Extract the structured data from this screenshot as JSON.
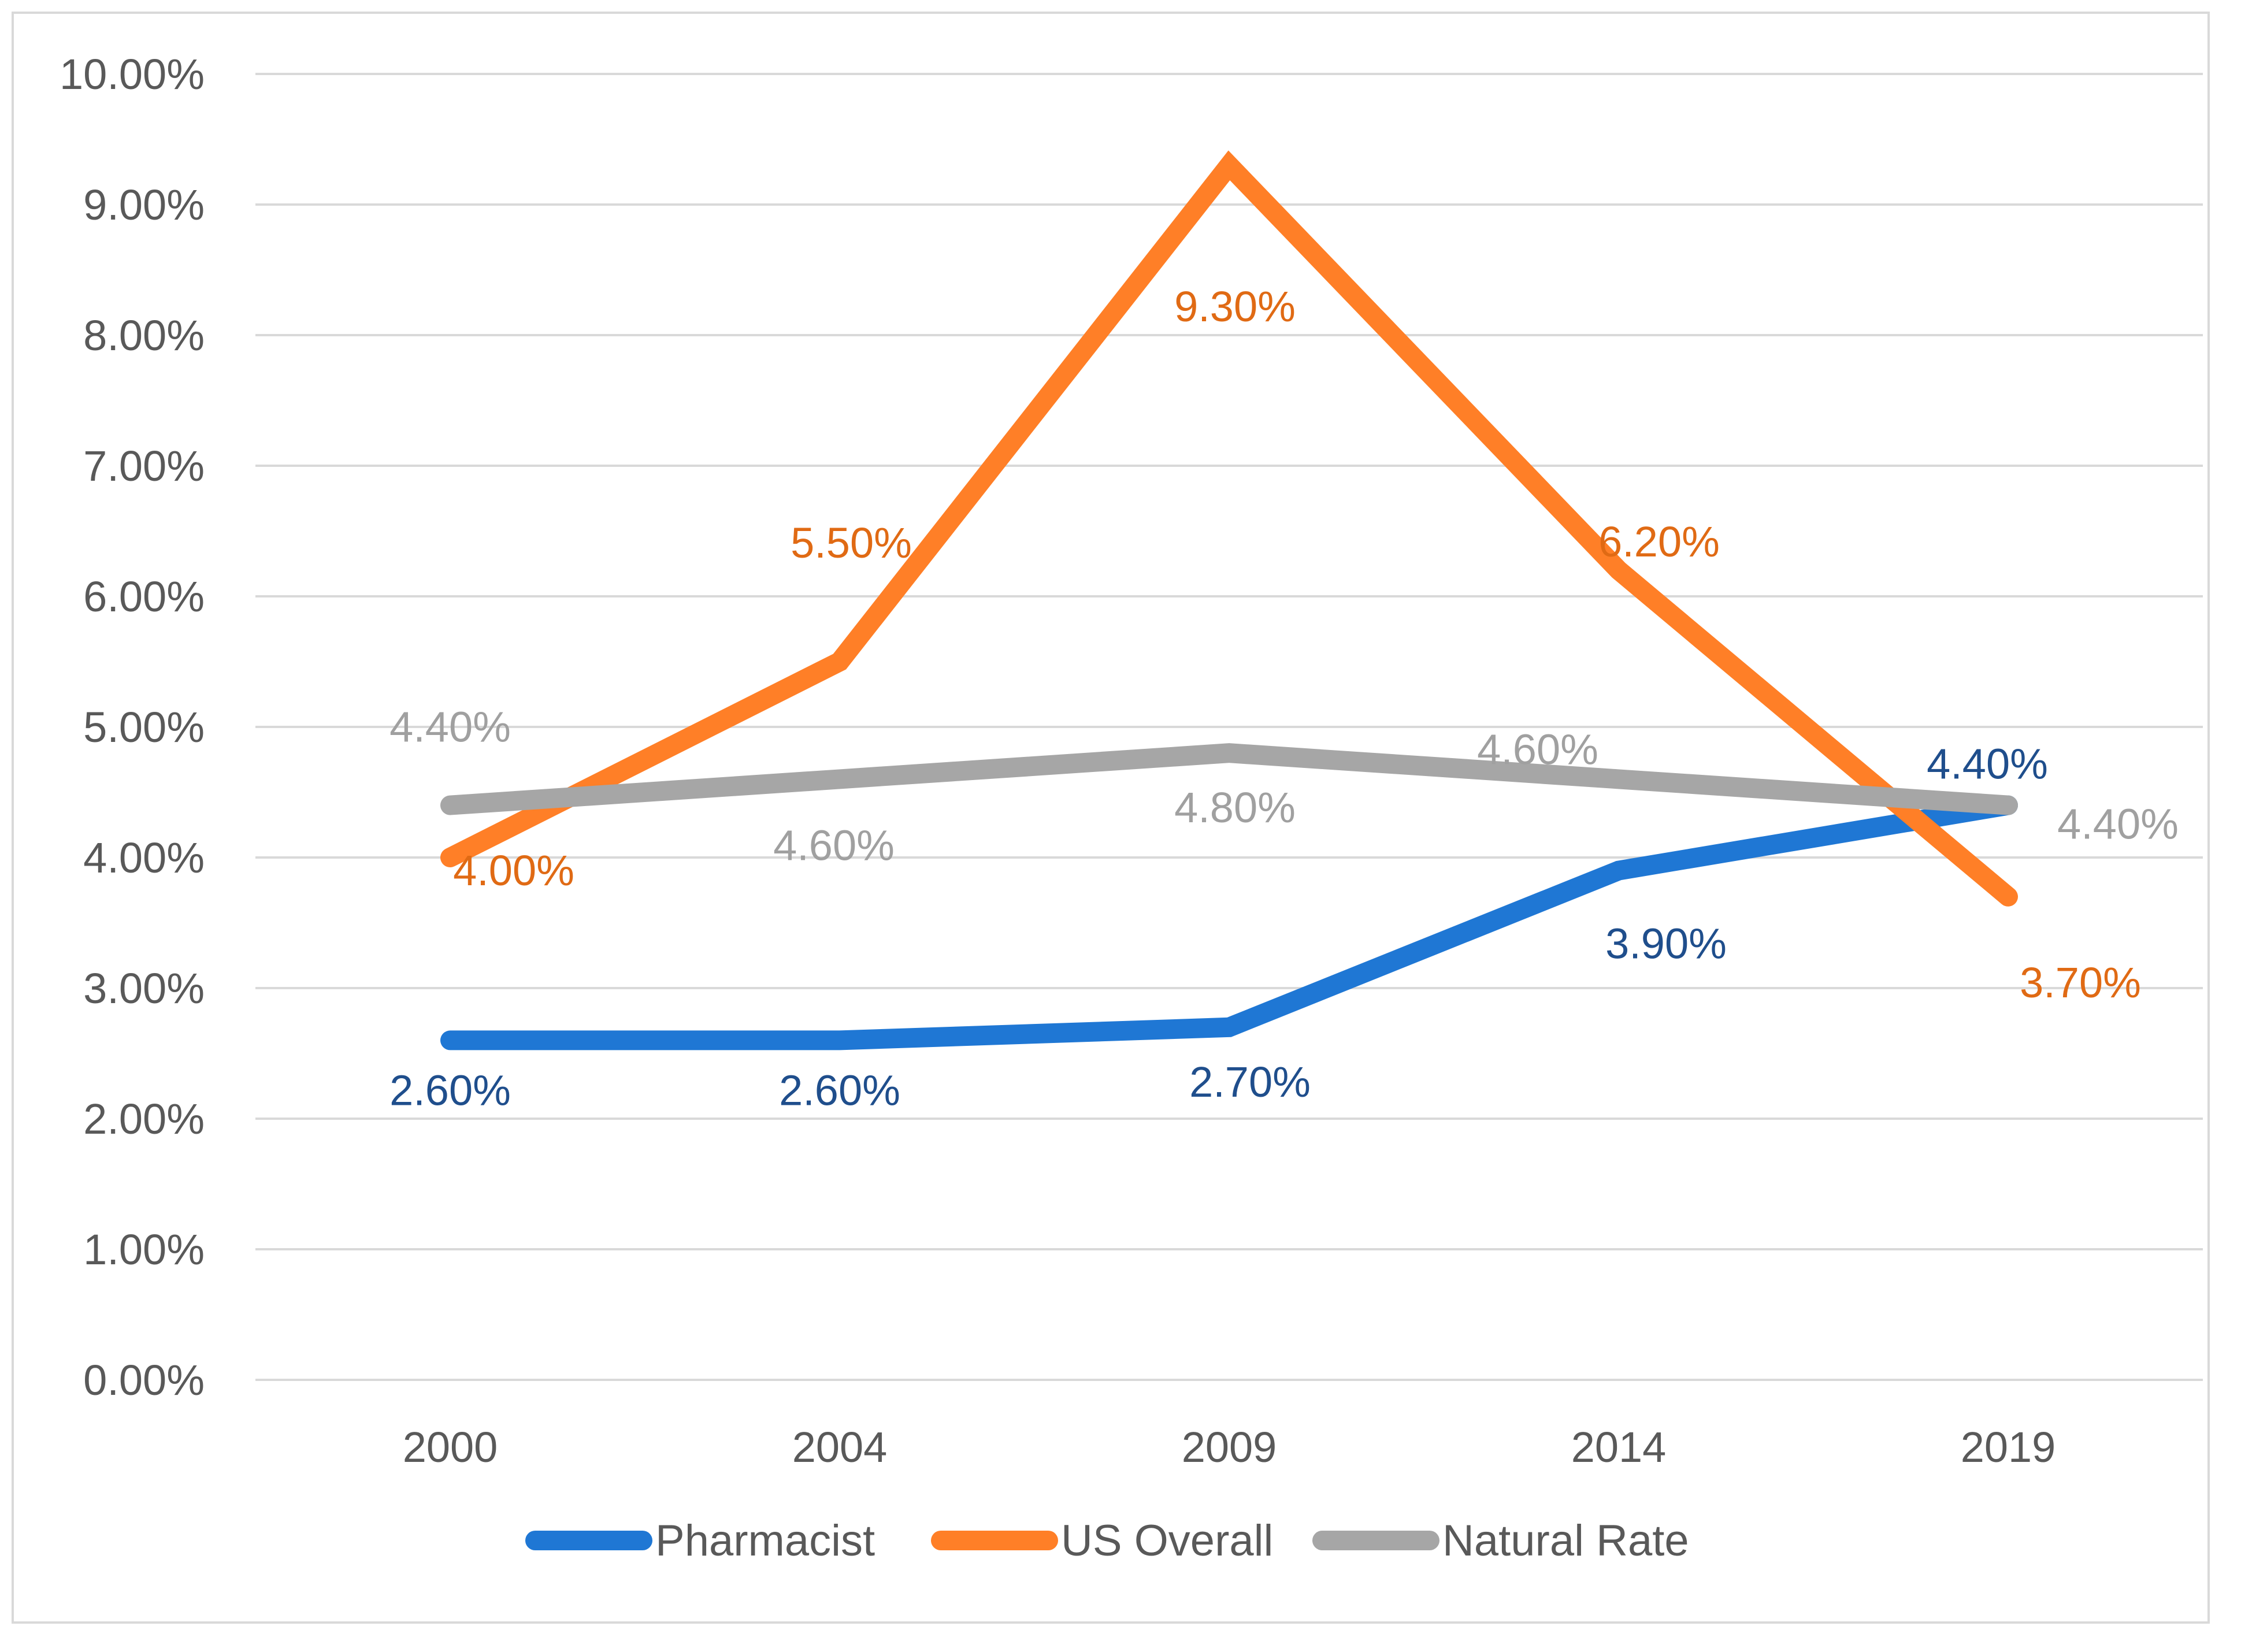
{
  "chart_data": {
    "type": "line",
    "title": "",
    "xlabel": "",
    "ylabel": "",
    "categories": [
      "2000",
      "2004",
      "2009",
      "2014",
      "2019"
    ],
    "ylim": [
      0,
      10
    ],
    "yticks": [
      "0.00%",
      "1.00%",
      "2.00%",
      "3.00%",
      "4.00%",
      "5.00%",
      "6.00%",
      "7.00%",
      "8.00%",
      "9.00%",
      "10.00%"
    ],
    "grid": true,
    "legend_position": "bottom",
    "series": [
      {
        "name": "Pharmacist",
        "color": "#1f77d4",
        "label_color": "#1f4e8c",
        "values": [
          2.6,
          2.6,
          2.7,
          3.9,
          4.4
        ],
        "labels": [
          "2.60%",
          "2.60%",
          "2.70%",
          "3.90%",
          "4.40%"
        ]
      },
      {
        "name": "US Overall",
        "color": "#ff7f27",
        "label_color": "#e06a14",
        "values": [
          4.0,
          5.5,
          9.3,
          6.2,
          3.7
        ],
        "labels": [
          "4.00%",
          "5.50%",
          "9.30%",
          "6.20%",
          "3.70%"
        ]
      },
      {
        "name": "Natural Rate",
        "color": "#a6a6a6",
        "label_color": "#a0a0a0",
        "values": [
          4.4,
          4.6,
          4.8,
          4.6,
          4.4
        ],
        "labels": [
          "4.40%",
          "4.60%",
          "4.80%",
          "4.60%",
          "4.40%"
        ]
      }
    ]
  }
}
